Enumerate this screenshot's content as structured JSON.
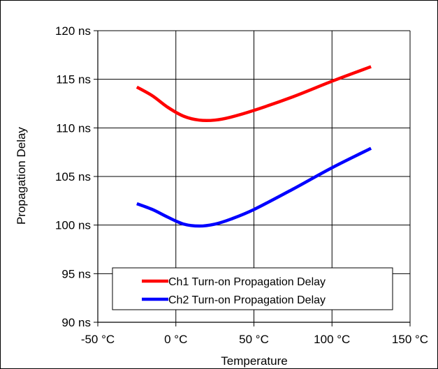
{
  "chart_data": {
    "type": "line",
    "title": "",
    "xlabel": "Temperature",
    "ylabel": "Propagation Delay",
    "x_tick_labels": [
      "-50 °C",
      "0 °C",
      "50 °C",
      "100 °C",
      "150 °C"
    ],
    "y_tick_labels": [
      "90 ns",
      "95 ns",
      "100 ns",
      "105 ns",
      "110 ns",
      "115 ns",
      "120 ns"
    ],
    "x_ticks": [
      -50,
      0,
      50,
      100,
      150
    ],
    "y_ticks": [
      90,
      95,
      100,
      105,
      110,
      115,
      120
    ],
    "xlim": [
      -50,
      150
    ],
    "ylim": [
      90,
      120
    ],
    "grid": true,
    "legend_position": "bottom-center",
    "series": [
      {
        "name": "Ch1 Turn-on Propagation Delay",
        "color": "#ff0000",
        "x": [
          -25,
          -15,
          -5,
          5,
          15,
          25,
          35,
          50,
          75,
          100,
          125
        ],
        "y": [
          114.2,
          113.3,
          112.1,
          111.2,
          110.8,
          110.8,
          111.1,
          111.8,
          113.2,
          114.8,
          116.3
        ]
      },
      {
        "name": "Ch2 Turn-on Propagation Delay",
        "color": "#0000ff",
        "x": [
          -25,
          -15,
          -5,
          5,
          15,
          25,
          35,
          50,
          75,
          100,
          125
        ],
        "y": [
          102.2,
          101.6,
          100.8,
          100.1,
          99.9,
          100.1,
          100.6,
          101.6,
          103.7,
          105.9,
          107.9
        ]
      }
    ]
  }
}
